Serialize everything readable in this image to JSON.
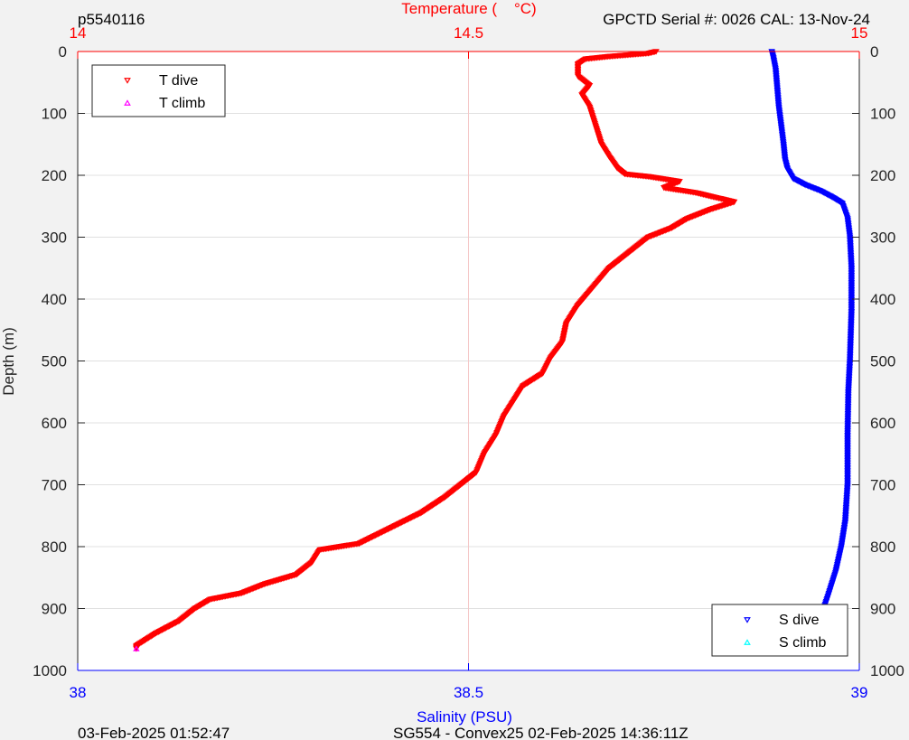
{
  "header": {
    "left": "p5540116",
    "right": "GPCTD Serial #: 0026 CAL: 13-Nov-24",
    "top_axis_title": "Temperature (    °C)"
  },
  "footer": {
    "left": "03-Feb-2025 01:52:47",
    "center": "SG554 - Convex25 02-Feb-2025 14:36:11Z"
  },
  "chart_data": {
    "type": "scatter",
    "ylabel": "Depth (m)",
    "xlabel_bottom": "Salinity (PSU)",
    "xlabel_top": "Temperature (    °C)",
    "ylim": [
      0,
      1000
    ],
    "y_reversed": true,
    "yticks": [
      "0",
      "100",
      "200",
      "300",
      "400",
      "500",
      "600",
      "700",
      "800",
      "900",
      "1000"
    ],
    "xlim_bottom": [
      38,
      39
    ],
    "xticks_bottom": [
      "38",
      "38.5",
      "39"
    ],
    "xlim_top": [
      14,
      15
    ],
    "xticks_top": [
      "14",
      "14.5",
      "15"
    ],
    "grid": true,
    "colors": {
      "temperature": "#ff0000",
      "salinity": "#0000ff",
      "t_climb": "#ff00ff",
      "s_climb": "#00ffff"
    },
    "legend_temperature": {
      "position": "top-left",
      "entries": [
        "T dive",
        "T climb"
      ]
    },
    "legend_salinity": {
      "position": "bottom-right",
      "entries": [
        "S dive",
        "S climb"
      ]
    },
    "series": [
      {
        "name": "T dive",
        "axis": "top",
        "marker": "triangle-down",
        "color": "#ff0000",
        "points": [
          [
            14.74,
            0
          ],
          [
            14.73,
            3
          ],
          [
            14.68,
            8
          ],
          [
            14.65,
            12
          ],
          [
            14.64,
            20
          ],
          [
            14.64,
            40
          ],
          [
            14.655,
            55
          ],
          [
            14.645,
            70
          ],
          [
            14.655,
            90
          ],
          [
            14.66,
            110
          ],
          [
            14.665,
            130
          ],
          [
            14.67,
            150
          ],
          [
            14.68,
            170
          ],
          [
            14.69,
            188
          ],
          [
            14.7,
            198
          ],
          [
            14.73,
            202
          ],
          [
            14.77,
            210
          ],
          [
            14.75,
            220
          ],
          [
            14.79,
            228
          ],
          [
            14.84,
            243
          ],
          [
            14.81,
            255
          ],
          [
            14.78,
            270
          ],
          [
            14.76,
            285
          ],
          [
            14.73,
            300
          ],
          [
            14.7,
            330
          ],
          [
            14.68,
            350
          ],
          [
            14.66,
            380
          ],
          [
            14.64,
            410
          ],
          [
            14.625,
            440
          ],
          [
            14.62,
            470
          ],
          [
            14.605,
            495
          ],
          [
            14.595,
            520
          ],
          [
            14.57,
            540
          ],
          [
            14.56,
            560
          ],
          [
            14.545,
            590
          ],
          [
            14.535,
            620
          ],
          [
            14.52,
            650
          ],
          [
            14.51,
            680
          ],
          [
            14.49,
            700
          ],
          [
            14.47,
            720
          ],
          [
            14.44,
            745
          ],
          [
            14.4,
            770
          ],
          [
            14.36,
            795
          ],
          [
            14.31,
            805
          ],
          [
            14.3,
            825
          ],
          [
            14.28,
            845
          ],
          [
            14.24,
            860
          ],
          [
            14.21,
            875
          ],
          [
            14.17,
            885
          ],
          [
            14.15,
            900
          ],
          [
            14.13,
            920
          ],
          [
            14.1,
            940
          ],
          [
            14.075,
            960
          ],
          [
            14.075,
            965
          ]
        ]
      },
      {
        "name": "T climb",
        "axis": "top",
        "marker": "triangle-up",
        "color": "#ff00ff",
        "points": [
          [
            14.075,
            965
          ]
        ]
      },
      {
        "name": "S dive",
        "axis": "bottom",
        "marker": "triangle-down",
        "color": "#0000ff",
        "points": [
          [
            38.888,
            0
          ],
          [
            38.89,
            10
          ],
          [
            38.893,
            30
          ],
          [
            38.895,
            60
          ],
          [
            38.897,
            90
          ],
          [
            38.9,
            120
          ],
          [
            38.903,
            150
          ],
          [
            38.905,
            175
          ],
          [
            38.908,
            190
          ],
          [
            38.915,
            205
          ],
          [
            38.93,
            215
          ],
          [
            38.95,
            225
          ],
          [
            38.965,
            235
          ],
          [
            38.978,
            245
          ],
          [
            38.985,
            270
          ],
          [
            38.988,
            300
          ],
          [
            38.99,
            350
          ],
          [
            38.99,
            420
          ],
          [
            38.988,
            500
          ],
          [
            38.986,
            550
          ],
          [
            38.985,
            620
          ],
          [
            38.985,
            700
          ],
          [
            38.982,
            760
          ],
          [
            38.977,
            800
          ],
          [
            38.97,
            840
          ],
          [
            38.96,
            880
          ],
          [
            38.952,
            910
          ],
          [
            38.946,
            935
          ],
          [
            38.942,
            955
          ],
          [
            38.94,
            965
          ]
        ]
      },
      {
        "name": "S climb",
        "axis": "bottom",
        "marker": "triangle-up",
        "color": "#00ffff",
        "points": [
          [
            38.94,
            965
          ]
        ]
      }
    ]
  }
}
